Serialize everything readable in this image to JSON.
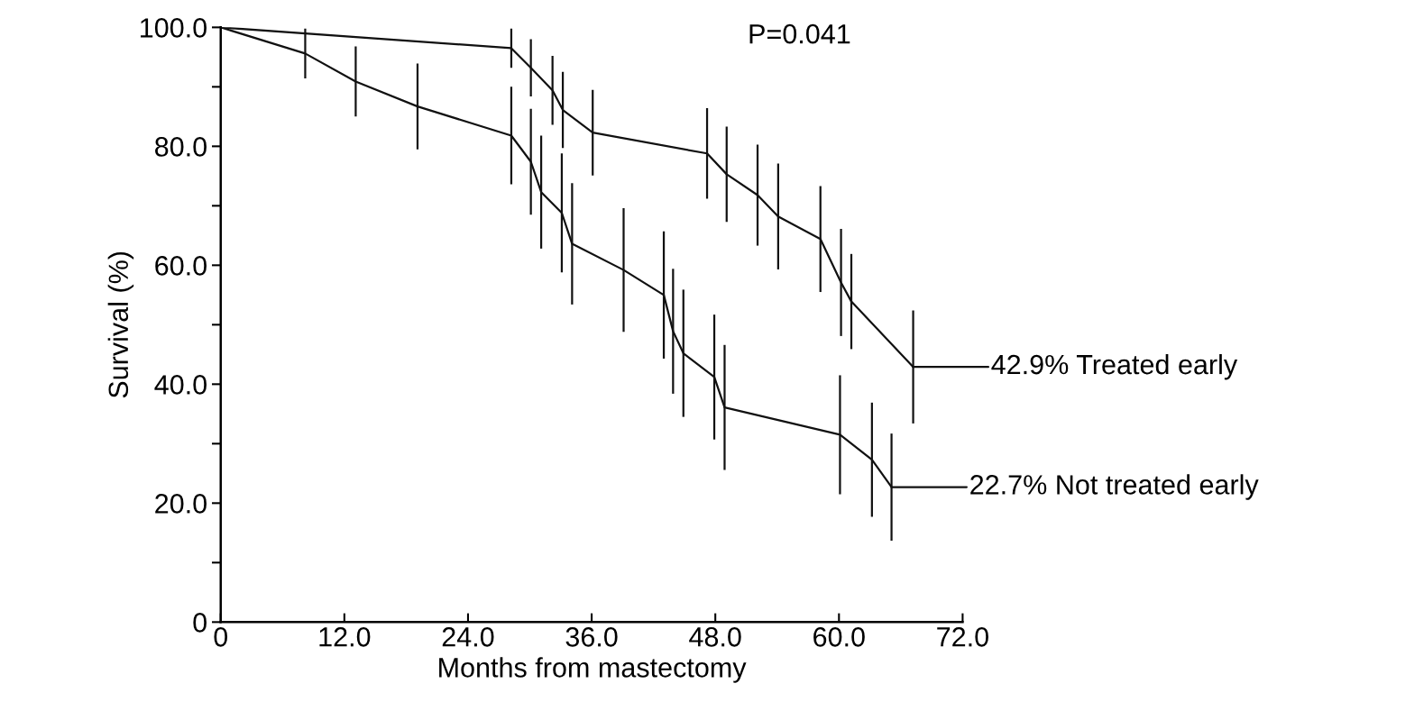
{
  "chart_data": {
    "type": "line",
    "xlabel": "Months from mastectomy",
    "ylabel": "Survival (%)",
    "xlim": [
      0,
      72
    ],
    "xticks": [
      0,
      {
        "value": 12,
        "label": "12.0"
      },
      {
        "value": 24,
        "label": "24.0"
      },
      {
        "value": 36,
        "label": "36.0"
      },
      {
        "value": 48,
        "label": "48.0"
      },
      {
        "value": 60,
        "label": "60.0"
      },
      {
        "value": 72,
        "label": "72.0"
      }
    ],
    "ylim": [
      0,
      100
    ],
    "yticks": [
      0,
      {
        "value": 10,
        "label": null
      },
      {
        "value": 20,
        "label": "20.0"
      },
      {
        "value": 30,
        "label": null
      },
      {
        "value": 40,
        "label": "40.0"
      },
      {
        "value": 50,
        "label": null
      },
      {
        "value": 60,
        "label": "60.0"
      },
      {
        "value": 70,
        "label": null
      },
      {
        "value": 80,
        "label": "80.0"
      },
      {
        "value": 90,
        "label": null
      },
      {
        "value": 100,
        "label": "100.0"
      }
    ],
    "grid": false,
    "legend": false,
    "marker": "none",
    "line_style": "solid",
    "series": [
      {
        "color": "#111111",
        "x": [
          0,
          28.2,
          30.1,
          32.2,
          33.2,
          36.1,
          47.2,
          49.1,
          52.1,
          54.1,
          58.2,
          60.2,
          61.2,
          67.2
        ],
        "values": [
          100,
          96.5,
          93.2,
          89.4,
          86.1,
          82.3,
          78.8,
          75.3,
          71.8,
          68.2,
          64.4,
          57.1,
          53.9,
          42.9
        ],
        "errors": [
          null,
          3.3,
          4.8,
          5.8,
          6.4,
          7.2,
          7.6,
          8,
          8.5,
          8.9,
          8.9,
          9,
          8,
          9.5
        ]
      },
      {
        "color": "#111111",
        "x": [
          0,
          8.2,
          13.1,
          19.1,
          28.2,
          30.1,
          31.1,
          33.1,
          34.1,
          39.1,
          43.0,
          43.9,
          44.9,
          47.9,
          48.9,
          60.1,
          63.2,
          65.1
        ],
        "values": [
          100,
          95.6,
          90.9,
          86.7,
          81.8,
          77.4,
          72.3,
          68.8,
          63.6,
          59.2,
          55.0,
          48.9,
          45.2,
          41.2,
          36.1,
          31.5,
          27.3,
          22.7
        ],
        "errors": [
          null,
          4.2,
          5.9,
          7.2,
          8.2,
          8.9,
          9.5,
          10,
          10.2,
          10.4,
          10.7,
          10.5,
          10.7,
          10.5,
          10.5,
          10,
          9.6,
          9
        ]
      }
    ],
    "annotations": [
      "P=0.041",
      {
        "text": "42.9% Treated early",
        "x": 67.2,
        "y": 42.9
      },
      {
        "text": "22.7% Not treated early",
        "x": 65.1,
        "y": 22.7
      }
    ]
  }
}
